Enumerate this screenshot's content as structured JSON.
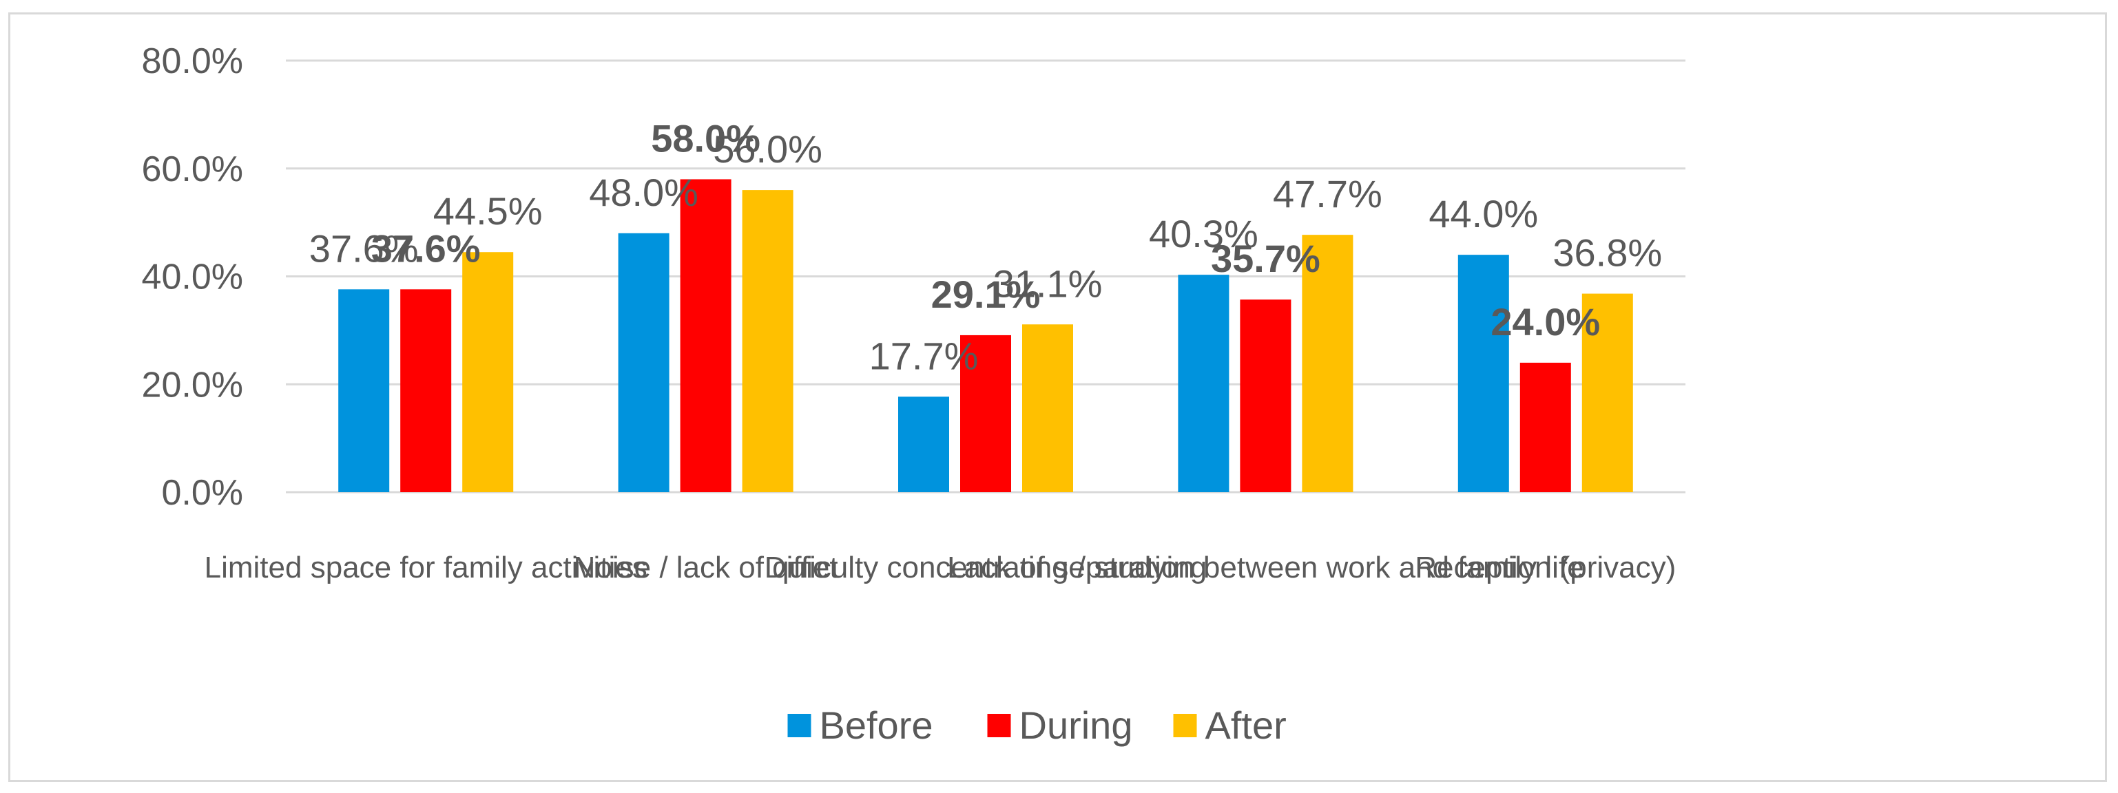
{
  "chart_data": {
    "type": "bar",
    "categories": [
      "Limited space for family activities",
      "Noise / lack of quiet",
      "Difficulty concentrating / studying",
      "Lack of separation between work and family life",
      "Reception (privacy)"
    ],
    "series": [
      {
        "name": "Before",
        "color": "#0093DD",
        "values": [
          37.6,
          48.0,
          17.7,
          40.3,
          44.0
        ],
        "labels": [
          "37.6%",
          "48.0%",
          "17.7%",
          "40.3%",
          "44.0%"
        ],
        "bold": false
      },
      {
        "name": "During",
        "color": "#FF0000",
        "values": [
          37.6,
          58.0,
          29.1,
          35.7,
          24.0
        ],
        "labels": [
          "37.6%",
          "58.0%",
          "29.1%",
          "35.7%",
          "24.0%"
        ],
        "bold": true
      },
      {
        "name": "After",
        "color": "#FFC000",
        "values": [
          44.5,
          56.0,
          31.1,
          47.7,
          36.8
        ],
        "labels": [
          "44.5%",
          "56.0%",
          "31.1%",
          "47.7%",
          "36.8%"
        ],
        "bold": false
      }
    ],
    "ylim": [
      0,
      80
    ],
    "yticks": [
      "0.0%",
      "20.0%",
      "40.0%",
      "60.0%",
      "80.0%"
    ],
    "ytick_values": [
      0,
      20,
      40,
      60,
      80
    ],
    "grid": true,
    "legend": "bottom",
    "title": "",
    "xlabel": "",
    "ylabel": ""
  }
}
